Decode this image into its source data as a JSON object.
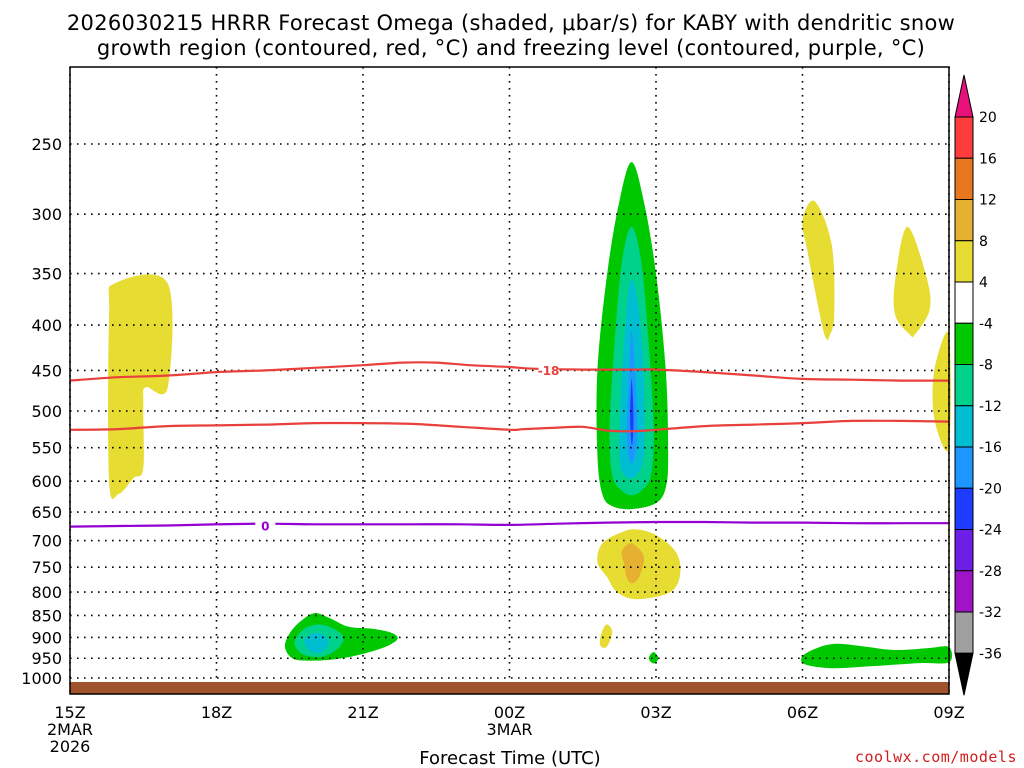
{
  "chart_data": {
    "type": "heatmap",
    "title_line1": "2026030215 HRRR Forecast Omega (shaded, μbar/s) for KABY with dendritic snow",
    "title_line2": "growth region (contoured, red, °C) and freezing level (contoured, purple, °C)",
    "xlabel": "Forecast Time (UTC)",
    "ylabel": "",
    "credit": "coolwx.com/models",
    "x_range_hours": [
      0,
      18
    ],
    "y_range_hpa": [
      1000,
      200
    ],
    "pressure_levels": [
      250,
      300,
      350,
      400,
      450,
      500,
      550,
      600,
      650,
      700,
      750,
      800,
      850,
      900,
      950,
      1000
    ],
    "y_tick_labels": [
      "250",
      "300",
      "350",
      "400",
      "450",
      "500",
      "550",
      "600",
      "650",
      "700",
      "750",
      "800",
      "850",
      "900",
      "950",
      "1000"
    ],
    "x_ticks": [
      {
        "hour": 0,
        "label": "15Z",
        "sub1": "2MAR",
        "sub2": "2026"
      },
      {
        "hour": 3,
        "label": "18Z",
        "sub1": "",
        "sub2": ""
      },
      {
        "hour": 6,
        "label": "21Z",
        "sub1": "",
        "sub2": ""
      },
      {
        "hour": 9,
        "label": "00Z",
        "sub1": "3MAR",
        "sub2": ""
      },
      {
        "hour": 12,
        "label": "03Z",
        "sub1": "",
        "sub2": ""
      },
      {
        "hour": 15,
        "label": "06Z",
        "sub1": "",
        "sub2": ""
      },
      {
        "hour": 18,
        "label": "09Z",
        "sub1": "",
        "sub2": ""
      }
    ],
    "colorbar": {
      "labels": [
        "20",
        "16",
        "12",
        "8",
        "4",
        "-4",
        "-8",
        "-12",
        "-16",
        "-20",
        "-24",
        "-28",
        "-32",
        "-36"
      ],
      "bins": [
        {
          "from": 20,
          "color": "#e8107a"
        },
        {
          "from": 16,
          "to": 20,
          "color": "#ff3c3c"
        },
        {
          "from": 12,
          "to": 16,
          "color": "#e87820"
        },
        {
          "from": 8,
          "to": 12,
          "color": "#e6b030"
        },
        {
          "from": 4,
          "to": 8,
          "color": "#e6dc32"
        },
        {
          "from": -4,
          "to": 4,
          "color": "#ffffff"
        },
        {
          "from": -8,
          "to": -4,
          "color": "#00c800"
        },
        {
          "from": -12,
          "to": -8,
          "color": "#00d28c"
        },
        {
          "from": -16,
          "to": -12,
          "color": "#00bed2"
        },
        {
          "from": -20,
          "to": -16,
          "color": "#1e96ff"
        },
        {
          "from": -24,
          "to": -20,
          "color": "#1e3cff"
        },
        {
          "from": -28,
          "to": -24,
          "color": "#6e1ee6"
        },
        {
          "from": -32,
          "to": -28,
          "color": "#a014c8"
        },
        {
          "from": -36,
          "to": -32,
          "color": "#a0a0a0"
        },
        {
          "to": -36,
          "color": "#000000"
        }
      ]
    },
    "contours": [
      {
        "name": "dgz-upper",
        "color": "#e8403c",
        "label": "-18",
        "label_at": [
          9.8,
          450
        ],
        "points": [
          [
            0,
            462
          ],
          [
            1,
            458
          ],
          [
            2,
            456
          ],
          [
            3,
            452
          ],
          [
            4,
            450
          ],
          [
            5,
            447
          ],
          [
            6,
            444
          ],
          [
            6.8,
            441
          ],
          [
            7.5,
            441
          ],
          [
            8.2,
            444
          ],
          [
            9,
            446
          ],
          [
            9.5,
            448
          ],
          [
            10.5,
            449
          ],
          [
            11.5,
            449
          ],
          [
            12,
            449
          ],
          [
            13,
            452
          ],
          [
            14,
            456
          ],
          [
            15,
            460
          ],
          [
            16,
            461
          ],
          [
            17,
            462
          ],
          [
            18,
            462
          ]
        ]
      },
      {
        "name": "dgz-lower",
        "color": "#e8403c",
        "label": "",
        "label_at": null,
        "points": [
          [
            0,
            525
          ],
          [
            1,
            524
          ],
          [
            2,
            520
          ],
          [
            3,
            519
          ],
          [
            4,
            518
          ],
          [
            5,
            516
          ],
          [
            6,
            516
          ],
          [
            7,
            517
          ],
          [
            8,
            521
          ],
          [
            9,
            525
          ],
          [
            9.3,
            524
          ],
          [
            10,
            522
          ],
          [
            10.5,
            521
          ],
          [
            11,
            526
          ],
          [
            11.5,
            527
          ],
          [
            12,
            525
          ],
          [
            13,
            520
          ],
          [
            14,
            518
          ],
          [
            15,
            516
          ],
          [
            16,
            513
          ],
          [
            17,
            513
          ],
          [
            18,
            514
          ]
        ]
      },
      {
        "name": "freezing-level",
        "color": "#9400d3",
        "label": "0",
        "label_at": [
          4,
          674
        ],
        "points": [
          [
            0,
            675
          ],
          [
            1,
            674
          ],
          [
            2,
            673
          ],
          [
            3,
            671
          ],
          [
            4,
            670
          ],
          [
            5,
            671
          ],
          [
            6,
            671
          ],
          [
            7,
            671
          ],
          [
            8,
            671
          ],
          [
            9,
            672
          ],
          [
            10,
            670
          ],
          [
            11,
            668
          ],
          [
            12,
            667
          ],
          [
            13,
            667
          ],
          [
            14,
            668
          ],
          [
            15,
            668
          ],
          [
            16,
            669
          ],
          [
            17,
            669
          ],
          [
            18,
            669
          ]
        ]
      }
    ],
    "omega_regions": [
      {
        "name": "ascent-core-4",
        "value": -4,
        "color": "#00c800",
        "points": [
          [
            10.9,
            620
          ],
          [
            10.8,
            560
          ],
          [
            10.8,
            450
          ],
          [
            11.0,
            350
          ],
          [
            11.25,
            290
          ],
          [
            11.5,
            262
          ],
          [
            11.75,
            290
          ],
          [
            12.0,
            350
          ],
          [
            12.2,
            450
          ],
          [
            12.25,
            560
          ],
          [
            12.2,
            610
          ],
          [
            12.0,
            635
          ],
          [
            11.5,
            645
          ],
          [
            11.1,
            640
          ]
        ]
      },
      {
        "name": "ascent-core-8",
        "value": -8,
        "color": "#00d28c",
        "points": [
          [
            11.1,
            590
          ],
          [
            11.05,
            520
          ],
          [
            11.15,
            420
          ],
          [
            11.3,
            340
          ],
          [
            11.5,
            310
          ],
          [
            11.7,
            340
          ],
          [
            11.85,
            420
          ],
          [
            11.95,
            520
          ],
          [
            11.9,
            590
          ],
          [
            11.7,
            615
          ],
          [
            11.5,
            622
          ],
          [
            11.3,
            615
          ]
        ]
      },
      {
        "name": "ascent-core-12",
        "value": -12,
        "color": "#00bed2",
        "points": [
          [
            11.25,
            560
          ],
          [
            11.3,
            460
          ],
          [
            11.4,
            385
          ],
          [
            11.5,
            355
          ],
          [
            11.65,
            385
          ],
          [
            11.75,
            460
          ],
          [
            11.75,
            560
          ],
          [
            11.6,
            590
          ],
          [
            11.5,
            595
          ],
          [
            11.35,
            590
          ]
        ]
      },
      {
        "name": "ascent-core-16",
        "value": -16,
        "color": "#1e96ff",
        "points": [
          [
            11.4,
            530
          ],
          [
            11.45,
            460
          ],
          [
            11.5,
            405
          ],
          [
            11.58,
            460
          ],
          [
            11.62,
            530
          ],
          [
            11.55,
            565
          ],
          [
            11.5,
            572
          ],
          [
            11.45,
            565
          ]
        ]
      },
      {
        "name": "ascent-core-20",
        "value": -20,
        "color": "#1e3cff",
        "points": [
          [
            11.47,
            510
          ],
          [
            11.5,
            460
          ],
          [
            11.54,
            510
          ],
          [
            11.52,
            540
          ],
          [
            11.5,
            545
          ]
        ]
      },
      {
        "name": "ascent-low-4",
        "value": -4,
        "color": "#00c800",
        "points": [
          [
            4.5,
            945
          ],
          [
            4.4,
            920
          ],
          [
            4.5,
            890
          ],
          [
            4.7,
            865
          ],
          [
            5.0,
            845
          ],
          [
            5.3,
            855
          ],
          [
            5.7,
            875
          ],
          [
            6.2,
            880
          ],
          [
            6.6,
            890
          ],
          [
            6.7,
            905
          ],
          [
            6.4,
            925
          ],
          [
            5.8,
            945
          ],
          [
            5.2,
            955
          ],
          [
            4.7,
            955
          ]
        ]
      },
      {
        "name": "ascent-low-8",
        "value": -8,
        "color": "#00d28c",
        "points": [
          [
            4.7,
            935
          ],
          [
            4.6,
            910
          ],
          [
            4.8,
            880
          ],
          [
            5.1,
            870
          ],
          [
            5.4,
            880
          ],
          [
            5.6,
            900
          ],
          [
            5.5,
            925
          ],
          [
            5.2,
            945
          ],
          [
            4.9,
            945
          ]
        ]
      },
      {
        "name": "ascent-low-12",
        "value": -12,
        "color": "#00bed2",
        "points": [
          [
            4.85,
            925
          ],
          [
            4.8,
            905
          ],
          [
            5.0,
            890
          ],
          [
            5.2,
            895
          ],
          [
            5.3,
            915
          ],
          [
            5.15,
            935
          ],
          [
            4.95,
            935
          ]
        ]
      },
      {
        "name": "ascent-small-4",
        "value": -4,
        "color": "#00c800",
        "points": [
          [
            11.85,
            950
          ],
          [
            11.95,
            935
          ],
          [
            12.05,
            950
          ],
          [
            11.95,
            963
          ]
        ]
      },
      {
        "name": "ascent-right-4",
        "value": -4,
        "color": "#00c800",
        "points": [
          [
            15.05,
            965
          ],
          [
            15.0,
            945
          ],
          [
            15.3,
            925
          ],
          [
            15.7,
            915
          ],
          [
            16.3,
            922
          ],
          [
            16.9,
            930
          ],
          [
            17.6,
            925
          ],
          [
            18.0,
            923
          ],
          [
            18.0,
            960
          ],
          [
            17.4,
            962
          ],
          [
            16.4,
            970
          ],
          [
            15.6,
            975
          ]
        ]
      },
      {
        "name": "descent-left-4",
        "value": 4,
        "color": "#e6dc32",
        "points": [
          [
            0.8,
            600
          ],
          [
            0.8,
            390
          ],
          [
            0.92,
            359
          ],
          [
            2.0,
            359
          ],
          [
            2.0,
            470
          ],
          [
            1.55,
            470
          ],
          [
            1.5,
            490
          ],
          [
            1.5,
            580
          ],
          [
            1.3,
            595
          ],
          [
            1.0,
            620
          ]
        ]
      },
      {
        "name": "descent-mid-4",
        "value": 4,
        "color": "#e6dc32",
        "points": [
          [
            11.0,
            770
          ],
          [
            10.8,
            740
          ],
          [
            10.9,
            705
          ],
          [
            11.3,
            685
          ],
          [
            11.6,
            680
          ],
          [
            12.0,
            690
          ],
          [
            12.4,
            720
          ],
          [
            12.5,
            760
          ],
          [
            12.3,
            800
          ],
          [
            11.6,
            815
          ],
          [
            11.2,
            800
          ]
        ]
      },
      {
        "name": "descent-mid-8",
        "value": 8,
        "color": "#e6b030",
        "points": [
          [
            11.35,
            745
          ],
          [
            11.3,
            720
          ],
          [
            11.5,
            705
          ],
          [
            11.75,
            730
          ],
          [
            11.65,
            770
          ],
          [
            11.5,
            782
          ],
          [
            11.4,
            770
          ]
        ]
      },
      {
        "name": "descent-small-4",
        "value": 4,
        "color": "#e6dc32",
        "points": [
          [
            10.85,
            915
          ],
          [
            10.9,
            885
          ],
          [
            11.0,
            870
          ],
          [
            11.1,
            885
          ],
          [
            11.05,
            910
          ],
          [
            10.95,
            925
          ]
        ]
      },
      {
        "name": "descent-upper-a-4",
        "value": 4,
        "color": "#e6dc32",
        "points": [
          [
            15.4,
            400
          ],
          [
            15.1,
            330
          ],
          [
            15.0,
            305
          ],
          [
            15.25,
            290
          ],
          [
            15.6,
            325
          ],
          [
            15.65,
            390
          ],
          [
            15.55,
            412
          ],
          [
            15.5,
            415
          ]
        ]
      },
      {
        "name": "descent-upper-b-4",
        "value": 4,
        "color": "#e6dc32",
        "points": [
          [
            17.2,
            410
          ],
          [
            16.9,
            390
          ],
          [
            16.9,
            355
          ],
          [
            17.15,
            310
          ],
          [
            17.55,
            355
          ],
          [
            17.6,
            385
          ],
          [
            17.3,
            410
          ]
        ]
      },
      {
        "name": "descent-edge-4",
        "value": 4,
        "color": "#e6dc32",
        "points": [
          [
            18.0,
            550
          ],
          [
            17.7,
            510
          ],
          [
            17.7,
            450
          ],
          [
            18.0,
            410
          ]
        ]
      }
    ]
  }
}
